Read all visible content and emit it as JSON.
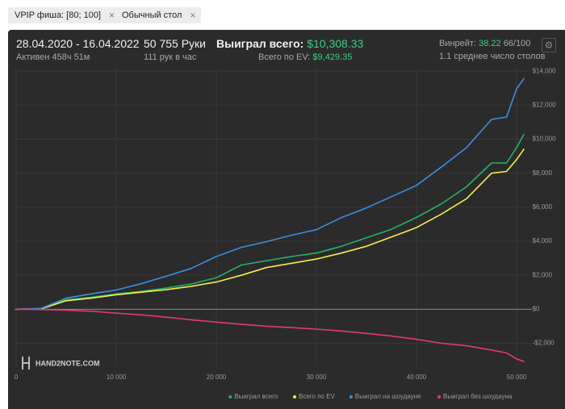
{
  "filters": [
    {
      "label": "VPIP фиша: [80; 100]"
    },
    {
      "label": "Обычный стол"
    }
  ],
  "header": {
    "date_range": "28.04.2020 - 16.04.2022",
    "active": "Активен 458ч 51м",
    "hands": "50 755 Руки",
    "hands_per_hour": "111 рук в час",
    "won_label": "Выиграл всего:",
    "won_value": "$10,308.33",
    "ev_label": "Всего по EV:",
    "ev_value": "$9,429.35",
    "winrate_label": "Винрейт:",
    "winrate_value": "38.22",
    "winrate_extra": "66/100",
    "tables": "1.1 среднее число столов"
  },
  "watermark": "HAND2NOTE.COM",
  "chart_data": {
    "type": "line",
    "x": [
      0,
      2500,
      5000,
      7500,
      10000,
      12500,
      15000,
      17500,
      20000,
      22500,
      25000,
      27500,
      30000,
      32500,
      35000,
      37500,
      40000,
      42500,
      45000,
      47500,
      49000,
      50000,
      50755
    ],
    "series": [
      {
        "name": "Выиграл всего",
        "color": "#22b366",
        "values": [
          0,
          30,
          550,
          700,
          900,
          1050,
          1250,
          1480,
          1850,
          2600,
          2850,
          3100,
          3300,
          3700,
          4200,
          4700,
          5400,
          6200,
          7200,
          8600,
          8600,
          9500,
          10308
        ]
      },
      {
        "name": "Всего по EV",
        "color": "#f2ee4a",
        "values": [
          0,
          20,
          500,
          650,
          850,
          1000,
          1150,
          1350,
          1600,
          2000,
          2450,
          2700,
          2950,
          3300,
          3700,
          4250,
          4800,
          5600,
          6500,
          8000,
          8100,
          8800,
          9429
        ]
      },
      {
        "name": "Выиграл на шоудауне",
        "color": "#3a8ee6",
        "values": [
          0,
          50,
          650,
          900,
          1130,
          1500,
          1940,
          2400,
          3100,
          3640,
          3970,
          4350,
          4680,
          5390,
          5960,
          6620,
          7280,
          8370,
          9500,
          11160,
          11300,
          12960,
          13580
        ]
      },
      {
        "name": "Выиграл без шоудауна",
        "color": "#e03c6e",
        "values": [
          0,
          -20,
          -50,
          -120,
          -230,
          -330,
          -470,
          -620,
          -760,
          -880,
          -1000,
          -1080,
          -1170,
          -1280,
          -1420,
          -1580,
          -1770,
          -2000,
          -2150,
          -2400,
          -2570,
          -2920,
          -3080
        ]
      }
    ],
    "xlim": [
      0,
      51500
    ],
    "xticks": [
      {
        "value": 0,
        "label": "0"
      },
      {
        "value": 10000,
        "label": "10 000"
      },
      {
        "value": 20000,
        "label": "20 000"
      },
      {
        "value": 30000,
        "label": "30 000"
      },
      {
        "value": 40000,
        "label": "40 000"
      },
      {
        "value": 50000,
        "label": "50 000"
      }
    ],
    "ylim": [
      -3400,
      14150
    ],
    "yticks": [
      {
        "value": -2000,
        "label": "-$2,000"
      },
      {
        "value": 0,
        "label": "$0"
      },
      {
        "value": 2000,
        "label": "$2,000"
      },
      {
        "value": 4000,
        "label": "$4,000"
      },
      {
        "value": 6000,
        "label": "$6,000"
      },
      {
        "value": 8000,
        "label": "$8,000"
      },
      {
        "value": 10000,
        "label": "$10,000"
      },
      {
        "value": 12000,
        "label": "$12,000"
      },
      {
        "value": 14000,
        "label": "$14,000"
      }
    ],
    "grid": true
  }
}
